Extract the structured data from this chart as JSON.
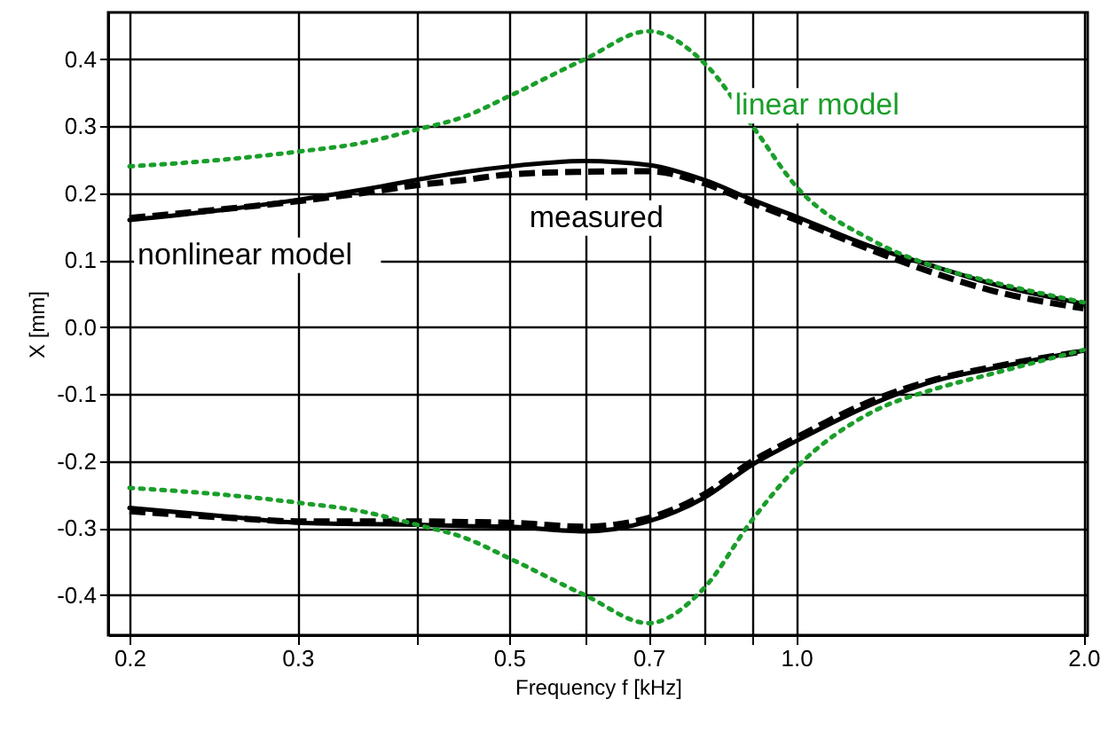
{
  "chart_data": {
    "type": "line",
    "xlabel": "Frequency f   [kHz]",
    "ylabel": "X   [mm]",
    "x": [
      0.2,
      0.25,
      0.3,
      0.35,
      0.4,
      0.45,
      0.5,
      0.6,
      0.7,
      0.8,
      0.9,
      1.0,
      1.2,
      1.4,
      1.6,
      2.0
    ],
    "series": [
      {
        "name": "nonlinear model",
        "color": "#000000",
        "line_style": "solid",
        "values": [
          0.16,
          0.175,
          0.19,
          0.205,
          0.22,
          0.232,
          0.24,
          0.248,
          0.242,
          0.22,
          0.19,
          0.165,
          0.12,
          0.09,
          0.065,
          0.035
        ]
      },
      {
        "color": "#000000",
        "line_style": "solid",
        "values": [
          -0.27,
          -0.282,
          -0.292,
          -0.294,
          -0.295,
          -0.297,
          -0.298,
          -0.305,
          -0.29,
          -0.255,
          -0.205,
          -0.17,
          -0.115,
          -0.08,
          -0.062,
          -0.035
        ]
      },
      {
        "name": "measured",
        "color": "#000000",
        "line_style": "dashed",
        "values": [
          0.163,
          0.176,
          0.188,
          0.2,
          0.212,
          0.22,
          0.228,
          0.232,
          0.233,
          0.215,
          0.185,
          0.16,
          0.115,
          0.08,
          0.055,
          0.028
        ]
      },
      {
        "color": "#000000",
        "line_style": "dashed",
        "values": [
          -0.275,
          -0.284,
          -0.29,
          -0.29,
          -0.29,
          -0.291,
          -0.292,
          -0.298,
          -0.285,
          -0.25,
          -0.2,
          -0.165,
          -0.11,
          -0.078,
          -0.06,
          -0.036
        ]
      },
      {
        "name": "linear model",
        "color": "#1a9e2a",
        "line_style": "dotted",
        "values": [
          0.24,
          0.25,
          0.262,
          0.275,
          0.295,
          0.315,
          0.345,
          0.4,
          0.442,
          0.395,
          0.3,
          0.21,
          0.13,
          0.09,
          0.068,
          0.037
        ]
      },
      {
        "color": "#1a9e2a",
        "line_style": "dotted",
        "values": [
          -0.24,
          -0.25,
          -0.262,
          -0.275,
          -0.295,
          -0.315,
          -0.345,
          -0.4,
          -0.442,
          -0.39,
          -0.287,
          -0.21,
          -0.127,
          -0.092,
          -0.07,
          -0.034
        ]
      }
    ],
    "xlim": [
      0.19,
      2.02
    ],
    "xticks": [
      0.2,
      0.3,
      {
        "value": 0.4,
        "label": null
      },
      0.5,
      {
        "value": 0.6,
        "label": null
      },
      0.7,
      {
        "value": 0.8,
        "label": null
      },
      {
        "value": 0.9,
        "label": null
      },
      {
        "value": 1,
        "label": "1.0"
      },
      {
        "value": 2,
        "label": "2.0"
      }
    ],
    "ylim": [
      -0.46,
      0.47
    ],
    "yticks": [
      -0.4,
      -0.3,
      -0.2,
      -0.1,
      {
        "value": 0,
        "label": "0.0"
      },
      0.1,
      0.2,
      0.3,
      0.4
    ],
    "log": "x",
    "grid": true
  }
}
